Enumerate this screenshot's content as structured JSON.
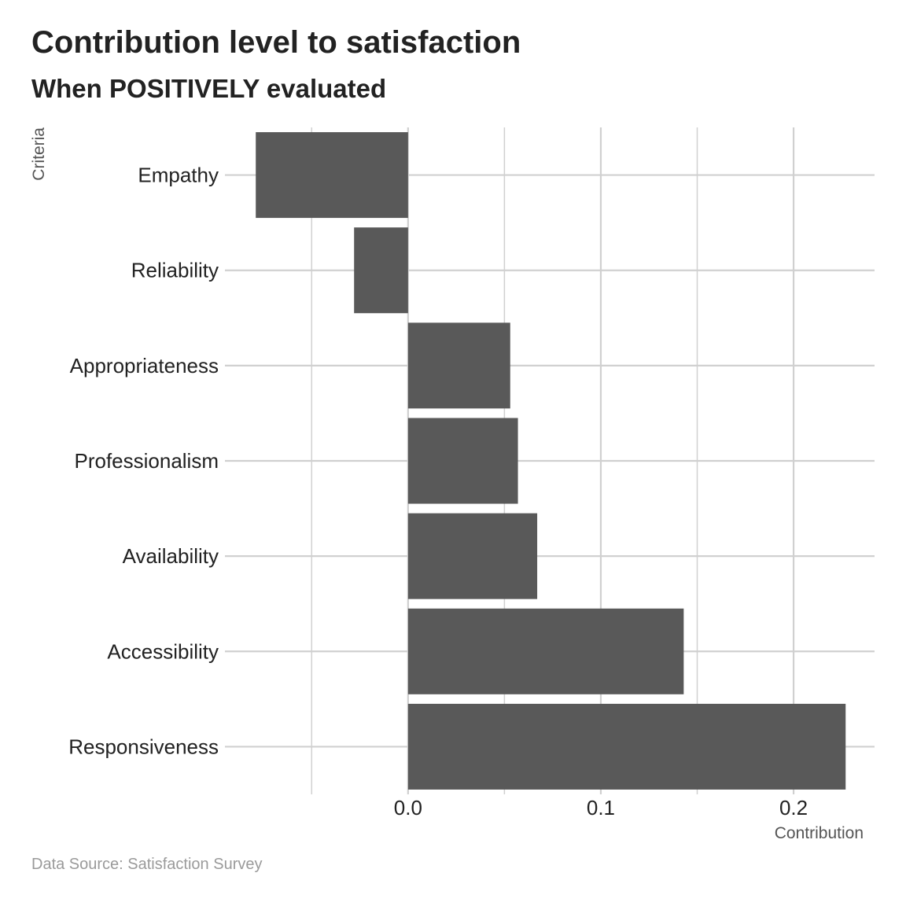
{
  "chart_data": {
    "type": "bar",
    "orientation": "horizontal",
    "title": "Contribution level to satisfaction",
    "subtitle": "When POSITIVELY evaluated",
    "caption": "Data Source: Satisfaction Survey",
    "xlabel": "Contribution",
    "ylabel": "Criteria",
    "categories": [
      "Empathy",
      "Reliability",
      "Appropriateness",
      "Professionalism",
      "Availability",
      "Accessibility",
      "Responsiveness"
    ],
    "values": [
      -0.079,
      -0.028,
      0.053,
      0.057,
      0.067,
      0.143,
      0.227
    ],
    "xlim": [
      -0.095,
      0.242
    ],
    "xticks": [
      0.0,
      0.1,
      0.2
    ],
    "xtick_labels": [
      "0.0",
      "0.1",
      "0.2"
    ],
    "minor_gridlines": [
      -0.05,
      0.05,
      0.15
    ],
    "grid": true,
    "legend": "none",
    "bar_color": "#595959",
    "grid_color": "#d0d0d0"
  }
}
